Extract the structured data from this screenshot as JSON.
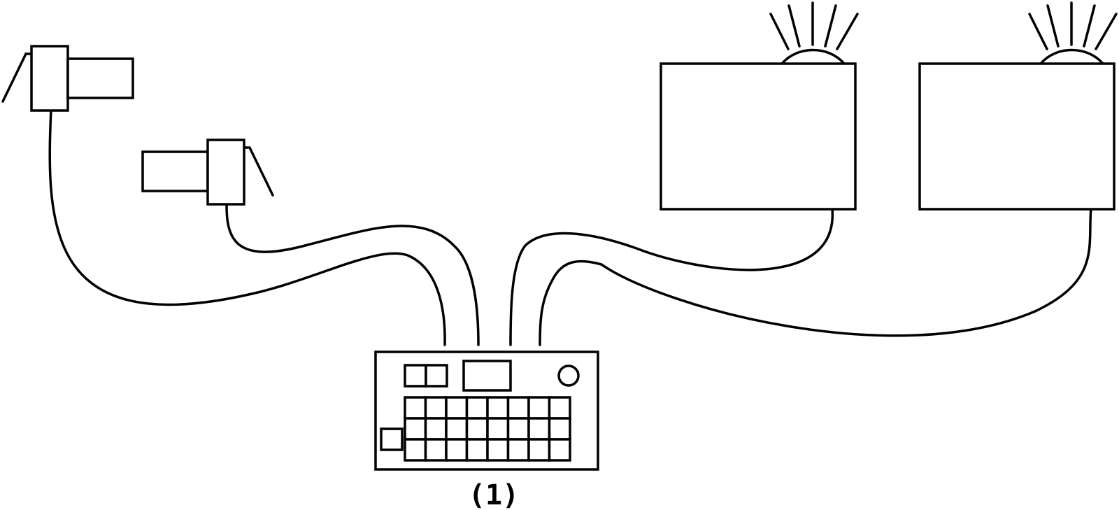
{
  "figure": {
    "caption": "(1)",
    "line_color": "#000000",
    "background": "#ffffff"
  },
  "components": {
    "cameras": [
      {
        "icon": "camera-icon"
      },
      {
        "icon": "camera-icon"
      }
    ],
    "monitors": [
      {
        "icon": "monitor-icon",
        "indicator": "light-icon"
      },
      {
        "icon": "monitor-icon",
        "indicator": "light-icon"
      }
    ],
    "controller": {
      "icon": "keypad-controller-icon"
    }
  }
}
